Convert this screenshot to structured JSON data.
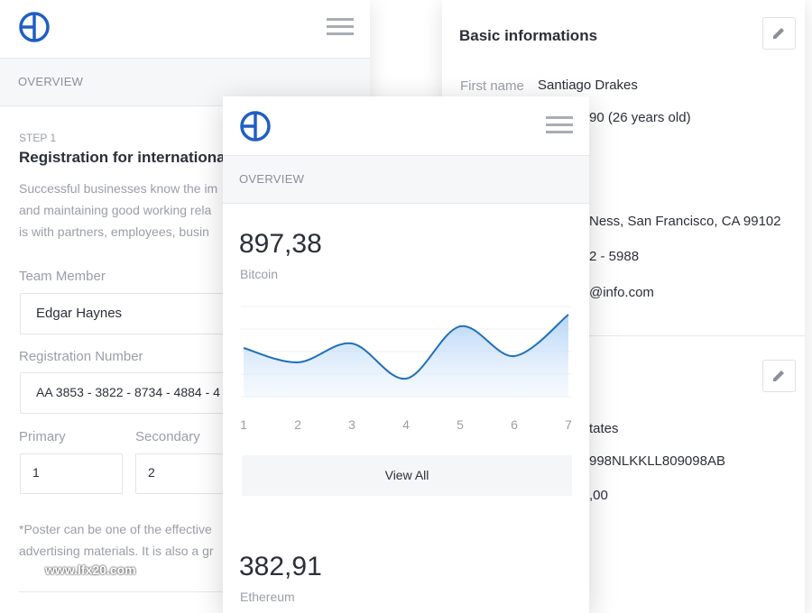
{
  "left_card": {
    "section": "OVERVIEW",
    "step": "STEP 1",
    "title": "Registration for internationa",
    "paragraph": [
      "Successful businesses know the im",
      "and maintaining good working rela",
      "is with partners, employees, busin"
    ],
    "fields": [
      {
        "label": "Team Member",
        "value": "Edgar Haynes"
      },
      {
        "label": "Registration Number",
        "value": "AA 3853 - 3822 - 8734 - 4884 - 4"
      }
    ],
    "primary": {
      "label": "Primary",
      "value": "1"
    },
    "secondary": {
      "label": "Secondary",
      "value": "2"
    },
    "note": [
      "*Poster can be one of the effective",
      "advertising materials. It is also a gr"
    ]
  },
  "middle_card": {
    "section": "OVERVIEW",
    "stats": [
      {
        "value": "897,38",
        "name": "Bitcoin"
      },
      {
        "value": "382,91",
        "name": "Ethereum"
      }
    ],
    "button": "View All"
  },
  "chart_data": {
    "type": "line",
    "categories": [
      "1",
      "2",
      "3",
      "4",
      "5",
      "6",
      "7"
    ],
    "values": [
      54,
      38,
      59,
      20,
      78,
      45,
      91
    ],
    "color": "#1f6fb5",
    "ylim": [
      0,
      100
    ]
  },
  "right_card": {
    "title": "Basic informations",
    "first_label": "First name",
    "first_value": "Santiago Drakes",
    "fragments": [
      "90 (26 years old)",
      "Ness, San Francisco, CA 99102",
      "2 - 5988",
      "@info.com"
    ],
    "fragments2": [
      "tates",
      "998NLKKLL809098AB",
      ",00"
    ]
  },
  "watermark": "www.lfx20.com"
}
